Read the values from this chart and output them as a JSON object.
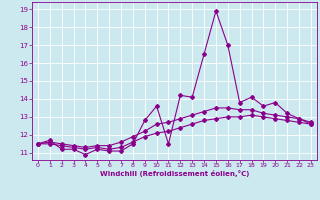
{
  "background_color": "#cce9f0",
  "line_color": "#8b008b",
  "xlabel": "Windchill (Refroidissement éolien,°C)",
  "xlim": [
    -0.5,
    23.5
  ],
  "ylim": [
    10.6,
    19.4
  ],
  "yticks": [
    11,
    12,
    13,
    14,
    15,
    16,
    17,
    18,
    19
  ],
  "xticks": [
    0,
    1,
    2,
    3,
    4,
    5,
    6,
    7,
    8,
    9,
    10,
    11,
    12,
    13,
    14,
    15,
    16,
    17,
    18,
    19,
    20,
    21,
    22,
    23
  ],
  "line1_x": [
    0,
    1,
    2,
    3,
    4,
    5,
    6,
    7,
    8,
    9,
    10,
    11,
    12,
    13,
    14,
    15,
    16,
    17,
    18,
    19,
    20,
    21,
    22,
    23
  ],
  "line1_y": [
    11.5,
    11.7,
    11.2,
    11.2,
    10.9,
    11.2,
    11.1,
    11.1,
    11.5,
    12.8,
    13.6,
    11.5,
    14.2,
    14.1,
    16.5,
    18.9,
    17.0,
    13.8,
    14.1,
    13.6,
    13.8,
    13.2,
    12.9,
    12.6
  ],
  "line2_x": [
    0,
    1,
    2,
    3,
    4,
    5,
    6,
    7,
    8,
    9,
    10,
    11,
    12,
    13,
    14,
    15,
    16,
    17,
    18,
    19,
    20,
    21,
    22,
    23
  ],
  "line2_y": [
    11.5,
    11.6,
    11.5,
    11.4,
    11.3,
    11.4,
    11.4,
    11.6,
    11.9,
    12.2,
    12.6,
    12.7,
    12.9,
    13.1,
    13.3,
    13.5,
    13.5,
    13.4,
    13.4,
    13.2,
    13.1,
    13.0,
    12.9,
    12.7
  ],
  "line3_x": [
    0,
    1,
    2,
    3,
    4,
    5,
    6,
    7,
    8,
    9,
    10,
    11,
    12,
    13,
    14,
    15,
    16,
    17,
    18,
    19,
    20,
    21,
    22,
    23
  ],
  "line3_y": [
    11.5,
    11.5,
    11.4,
    11.3,
    11.2,
    11.3,
    11.2,
    11.3,
    11.6,
    11.9,
    12.1,
    12.2,
    12.4,
    12.6,
    12.8,
    12.9,
    13.0,
    13.0,
    13.1,
    13.0,
    12.9,
    12.8,
    12.7,
    12.6
  ]
}
